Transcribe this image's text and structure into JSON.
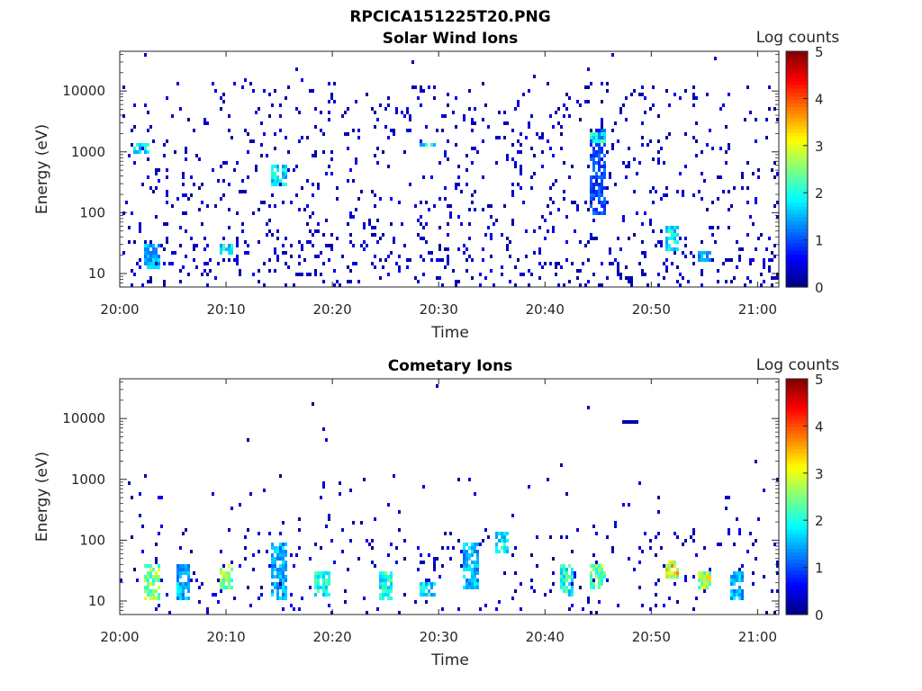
{
  "figure": {
    "title": "RPCICA151225T20.PNG"
  },
  "colorbar": {
    "label": "Log counts",
    "ticks": [
      "0",
      "1",
      "2",
      "3",
      "4",
      "5"
    ],
    "range": [
      0,
      5
    ],
    "colormap": "jet"
  },
  "chart_data": [
    {
      "type": "heatmap",
      "title": "Solar Wind Ions",
      "xlabel": "Time",
      "ylabel": "Energy (eV)",
      "xticks": [
        "20:00",
        "20:10",
        "20:20",
        "20:30",
        "20:40",
        "20:50",
        "21:00"
      ],
      "yticks": [
        "10",
        "100",
        "1000",
        "10000"
      ],
      "xlim": [
        "20:00",
        "21:02"
      ],
      "ylim": [
        6,
        45000
      ],
      "yscale": "log",
      "zlabel": "Log counts",
      "zlim": [
        0,
        5
      ],
      "features": [
        {
          "time": "20:02",
          "energy_eV": [
            1000,
            1500
          ],
          "log_counts": 1.8
        },
        {
          "time": "20:03",
          "energy_eV": [
            12,
            30
          ],
          "log_counts": 1.5
        },
        {
          "time": "20:10",
          "energy_eV": [
            20,
            30
          ],
          "log_counts": 1.8
        },
        {
          "time": "20:15",
          "energy_eV": [
            300,
            600
          ],
          "log_counts": 1.8
        },
        {
          "time": "20:29",
          "energy_eV": [
            1200,
            1500
          ],
          "log_counts": 1.8
        },
        {
          "time": "20:45",
          "energy_eV": [
            100,
            2500
          ],
          "log_counts": 1.0
        },
        {
          "time": "20:45",
          "energy_eV": [
            1500,
            2200
          ],
          "log_counts": 2.0
        },
        {
          "time": "20:52",
          "energy_eV": [
            25,
            60
          ],
          "log_counts": 1.8
        },
        {
          "time": "20:55",
          "energy_eV": [
            15,
            25
          ],
          "log_counts": 1.5
        }
      ]
    },
    {
      "type": "heatmap",
      "title": "Cometary Ions",
      "xlabel": "Time",
      "ylabel": "Energy (eV)",
      "xticks": [
        "20:00",
        "20:10",
        "20:20",
        "20:30",
        "20:40",
        "20:50",
        "21:00"
      ],
      "yticks": [
        "10",
        "100",
        "1000",
        "10000"
      ],
      "xlim": [
        "20:00",
        "21:02"
      ],
      "ylim": [
        6,
        45000
      ],
      "yscale": "log",
      "zlabel": "Log counts",
      "zlim": [
        0,
        5
      ],
      "features": [
        {
          "time": "20:03",
          "energy_eV": [
            10,
            40
          ],
          "log_counts": 2.5
        },
        {
          "time": "20:06",
          "energy_eV": [
            10,
            40
          ],
          "log_counts": 1.5
        },
        {
          "time": "20:10",
          "energy_eV": [
            15,
            40
          ],
          "log_counts": 2.5
        },
        {
          "time": "20:15",
          "energy_eV": [
            10,
            100
          ],
          "log_counts": 1.5
        },
        {
          "time": "20:19",
          "energy_eV": [
            12,
            30
          ],
          "log_counts": 2.0
        },
        {
          "time": "20:25",
          "energy_eV": [
            10,
            30
          ],
          "log_counts": 2.0
        },
        {
          "time": "20:29",
          "energy_eV": [
            12,
            20
          ],
          "log_counts": 1.8
        },
        {
          "time": "20:33",
          "energy_eV": [
            15,
            100
          ],
          "log_counts": 1.5
        },
        {
          "time": "20:36",
          "energy_eV": [
            60,
            150
          ],
          "log_counts": 1.8
        },
        {
          "time": "20:42",
          "energy_eV": [
            12,
            40
          ],
          "log_counts": 2.0
        },
        {
          "time": "20:45",
          "energy_eV": [
            15,
            40
          ],
          "log_counts": 2.5
        },
        {
          "time": "20:52",
          "energy_eV": [
            25,
            50
          ],
          "log_counts": 3.0
        },
        {
          "time": "20:55",
          "energy_eV": [
            15,
            30
          ],
          "log_counts": 2.7
        },
        {
          "time": "20:58",
          "energy_eV": [
            10,
            30
          ],
          "log_counts": 1.5
        },
        {
          "time": "20:48",
          "energy_eV": [
            9000,
            10000
          ],
          "log_counts": 0.2
        }
      ]
    }
  ]
}
